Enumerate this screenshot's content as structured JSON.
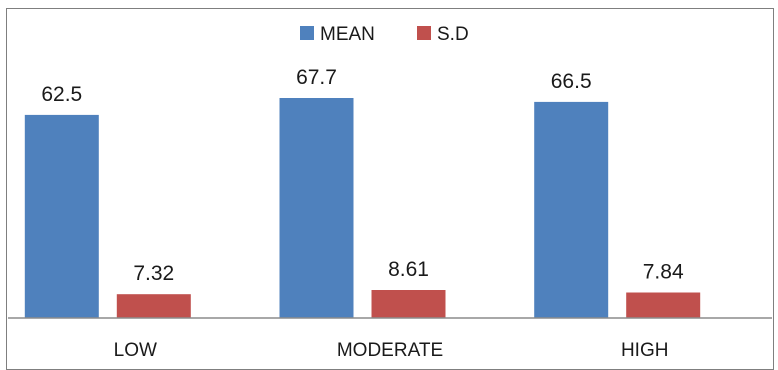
{
  "chart_data": {
    "type": "bar",
    "categories": [
      "LOW",
      "MODERATE",
      "HIGH"
    ],
    "series": [
      {
        "name": "MEAN",
        "values": [
          62.5,
          67.7,
          66.5
        ],
        "color": "#4f81bd"
      },
      {
        "name": "S.D",
        "values": [
          7.32,
          8.61,
          7.84
        ],
        "color": "#c0504d"
      }
    ],
    "value_labels": [
      [
        "62.5",
        "67.7",
        "66.5"
      ],
      [
        "7.32",
        "8.61",
        "7.84"
      ]
    ],
    "ylim": [
      0,
      70
    ],
    "grid": false,
    "legend_position": "top-center"
  }
}
